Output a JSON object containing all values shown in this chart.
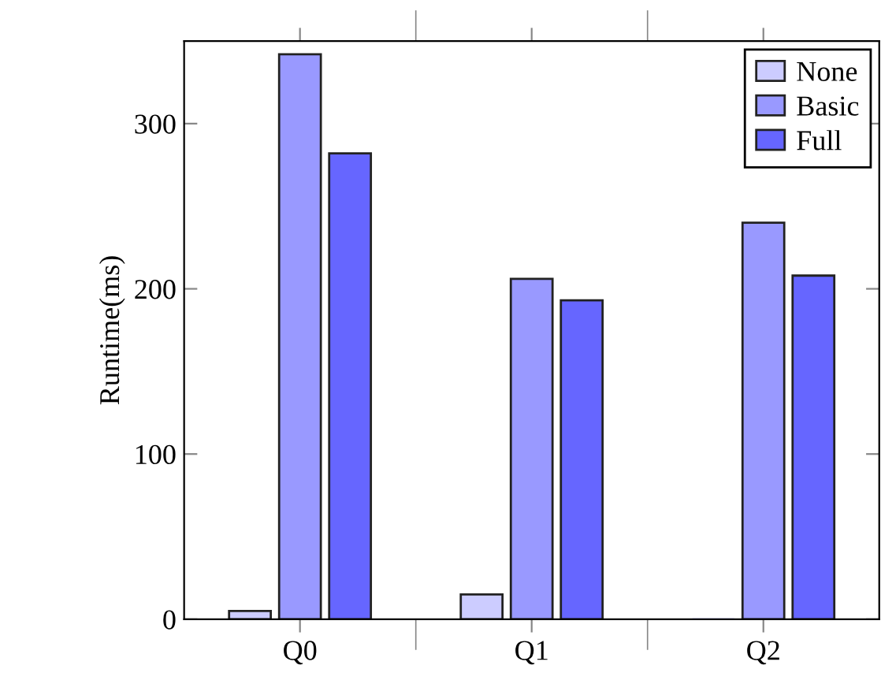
{
  "chart_data": {
    "type": "bar",
    "ylabel": "Runtime(ms)",
    "categories": [
      "Q0",
      "Q1",
      "Q2"
    ],
    "series": [
      {
        "name": "None",
        "color": "#ccccff",
        "values": [
          5,
          15,
          0
        ]
      },
      {
        "name": "Basic",
        "color": "#9999ff",
        "values": [
          342,
          206,
          240
        ]
      },
      {
        "name": "Full",
        "color": "#6666ff",
        "values": [
          282,
          193,
          208
        ]
      }
    ],
    "ylim": [
      0,
      350
    ],
    "yticks": [
      0,
      100,
      200,
      300
    ],
    "grid": false,
    "legend": "top right"
  }
}
